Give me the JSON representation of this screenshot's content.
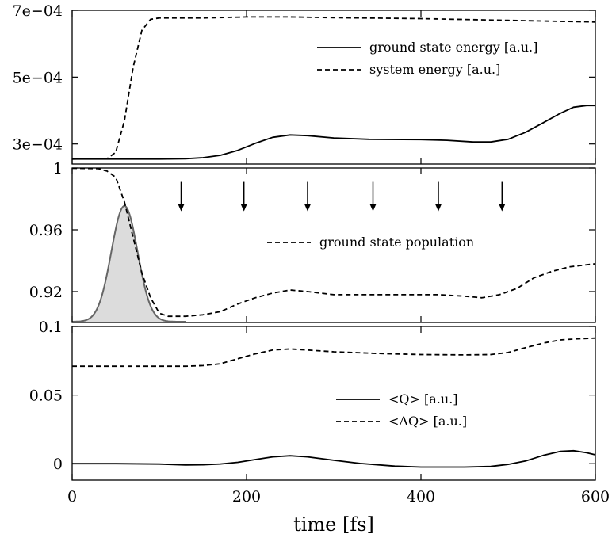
{
  "chart_data": {
    "type": "line",
    "xlabel": "time [fs]",
    "xlim": [
      0,
      600
    ],
    "x_ticks": [
      0,
      200,
      400,
      600
    ],
    "x_tick_labels": [
      "0",
      "200",
      "400",
      "600"
    ],
    "panels": [
      {
        "id": "energy",
        "ylim": [
          0.00024,
          0.0007
        ],
        "y_ticks": [
          0.0003,
          0.0005,
          0.0007
        ],
        "y_tick_labels": [
          "3e−04",
          "5e−04",
          "7e−04"
        ],
        "legend_placement": "top-right",
        "series": [
          {
            "name": "ground state energy [a.u.]",
            "style": "solid",
            "color": "#000000",
            "points": [
              [
                0,
                0.000255
              ],
              [
                50,
                0.000255
              ],
              [
                100,
                0.000255
              ],
              [
                130,
                0.000256
              ],
              [
                150,
                0.000259
              ],
              [
                170,
                0.000266
              ],
              [
                190,
                0.000281
              ],
              [
                210,
                0.000302
              ],
              [
                230,
                0.00032
              ],
              [
                250,
                0.000327
              ],
              [
                270,
                0.000325
              ],
              [
                300,
                0.000318
              ],
              [
                340,
                0.000314
              ],
              [
                400,
                0.000313
              ],
              [
                430,
                0.000311
              ],
              [
                460,
                0.000306
              ],
              [
                480,
                0.000306
              ],
              [
                500,
                0.000314
              ],
              [
                520,
                0.000335
              ],
              [
                540,
                0.000363
              ],
              [
                560,
                0.000392
              ],
              [
                575,
                0.00041
              ],
              [
                590,
                0.000415
              ],
              [
                600,
                0.000415
              ]
            ]
          },
          {
            "name": "system energy [a.u.]",
            "style": "dashed",
            "color": "#000000",
            "points": [
              [
                0,
                0.000255
              ],
              [
                40,
                0.000256
              ],
              [
                50,
                0.000275
              ],
              [
                60,
                0.00037
              ],
              [
                70,
                0.00053
              ],
              [
                80,
                0.00064
              ],
              [
                90,
                0.000673
              ],
              [
                100,
                0.000677
              ],
              [
                150,
                0.000677
              ],
              [
                200,
                0.00068
              ],
              [
                250,
                0.00068
              ],
              [
                300,
                0.000678
              ],
              [
                400,
                0.000675
              ],
              [
                500,
                0.00067
              ],
              [
                600,
                0.000665
              ]
            ]
          }
        ]
      },
      {
        "id": "population",
        "ylim": [
          0.9,
          1.0
        ],
        "y_ticks": [
          0.92,
          0.96,
          1.0
        ],
        "y_tick_labels": [
          "0.92",
          "0.96",
          "1"
        ],
        "legend_placement": "center-right",
        "series": [
          {
            "name": "ground state population",
            "style": "dashed",
            "color": "#000000",
            "points": [
              [
                0,
                0.9998
              ],
              [
                30,
                0.9996
              ],
              [
                40,
                0.998
              ],
              [
                50,
                0.994
              ],
              [
                60,
                0.978
              ],
              [
                70,
                0.955
              ],
              [
                80,
                0.932
              ],
              [
                90,
                0.916
              ],
              [
                100,
                0.906
              ],
              [
                110,
                0.904
              ],
              [
                130,
                0.904
              ],
              [
                150,
                0.905
              ],
              [
                170,
                0.907
              ],
              [
                190,
                0.912
              ],
              [
                210,
                0.916
              ],
              [
                230,
                0.919
              ],
              [
                250,
                0.921
              ],
              [
                270,
                0.92
              ],
              [
                300,
                0.918
              ],
              [
                350,
                0.918
              ],
              [
                400,
                0.918
              ],
              [
                420,
                0.918
              ],
              [
                450,
                0.917
              ],
              [
                470,
                0.916
              ],
              [
                490,
                0.918
              ],
              [
                510,
                0.922
              ],
              [
                530,
                0.929
              ],
              [
                550,
                0.933
              ],
              [
                570,
                0.936
              ],
              [
                600,
                0.938
              ]
            ]
          }
        ],
        "pulse": {
          "center": 60,
          "sigma": 15,
          "peak": 0.9755,
          "baseline": 0.9005,
          "x_range": [
            0,
            130
          ],
          "fill": "#dcdcdc",
          "stroke": "#666666"
        },
        "arrow_x": [
          125,
          197,
          270,
          345,
          420,
          493
        ],
        "arrow_y_top": 0.991,
        "arrow_y_bottom": 0.972
      },
      {
        "id": "position",
        "ylim": [
          -0.012,
          0.1
        ],
        "y_ticks": [
          0,
          0.05,
          0.1
        ],
        "y_tick_labels": [
          "0",
          "0.05",
          "0.1"
        ],
        "legend_placement": "center-right",
        "series": [
          {
            "name": "<Q> [a.u.]",
            "style": "solid",
            "color": "#000000",
            "points": [
              [
                0,
                0
              ],
              [
                50,
                0
              ],
              [
                100,
                -0.0003
              ],
              [
                130,
                -0.001
              ],
              [
                150,
                -0.0008
              ],
              [
                170,
                -0.0002
              ],
              [
                190,
                0.001
              ],
              [
                210,
                0.003
              ],
              [
                230,
                0.005
              ],
              [
                250,
                0.0058
              ],
              [
                270,
                0.005
              ],
              [
                300,
                0.0025
              ],
              [
                330,
                0.0002
              ],
              [
                370,
                -0.0018
              ],
              [
                400,
                -0.0025
              ],
              [
                450,
                -0.0025
              ],
              [
                480,
                -0.002
              ],
              [
                500,
                -0.0005
              ],
              [
                520,
                0.002
              ],
              [
                540,
                0.006
              ],
              [
                560,
                0.009
              ],
              [
                575,
                0.0095
              ],
              [
                590,
                0.008
              ],
              [
                600,
                0.0065
              ]
            ]
          },
          {
            "name": "<ΔQ> [a.u.]",
            "style": "dashed",
            "color": "#000000",
            "points": [
              [
                0,
                0.071
              ],
              [
                50,
                0.071
              ],
              [
                100,
                0.071
              ],
              [
                130,
                0.071
              ],
              [
                150,
                0.0715
              ],
              [
                170,
                0.0728
              ],
              [
                190,
                0.0765
              ],
              [
                210,
                0.08
              ],
              [
                230,
                0.0828
              ],
              [
                250,
                0.0836
              ],
              [
                270,
                0.0828
              ],
              [
                300,
                0.0815
              ],
              [
                350,
                0.0803
              ],
              [
                400,
                0.0795
              ],
              [
                450,
                0.0793
              ],
              [
                480,
                0.0795
              ],
              [
                500,
                0.081
              ],
              [
                520,
                0.0845
              ],
              [
                540,
                0.0878
              ],
              [
                560,
                0.0902
              ],
              [
                580,
                0.091
              ],
              [
                600,
                0.0915
              ]
            ]
          }
        ]
      }
    ]
  }
}
